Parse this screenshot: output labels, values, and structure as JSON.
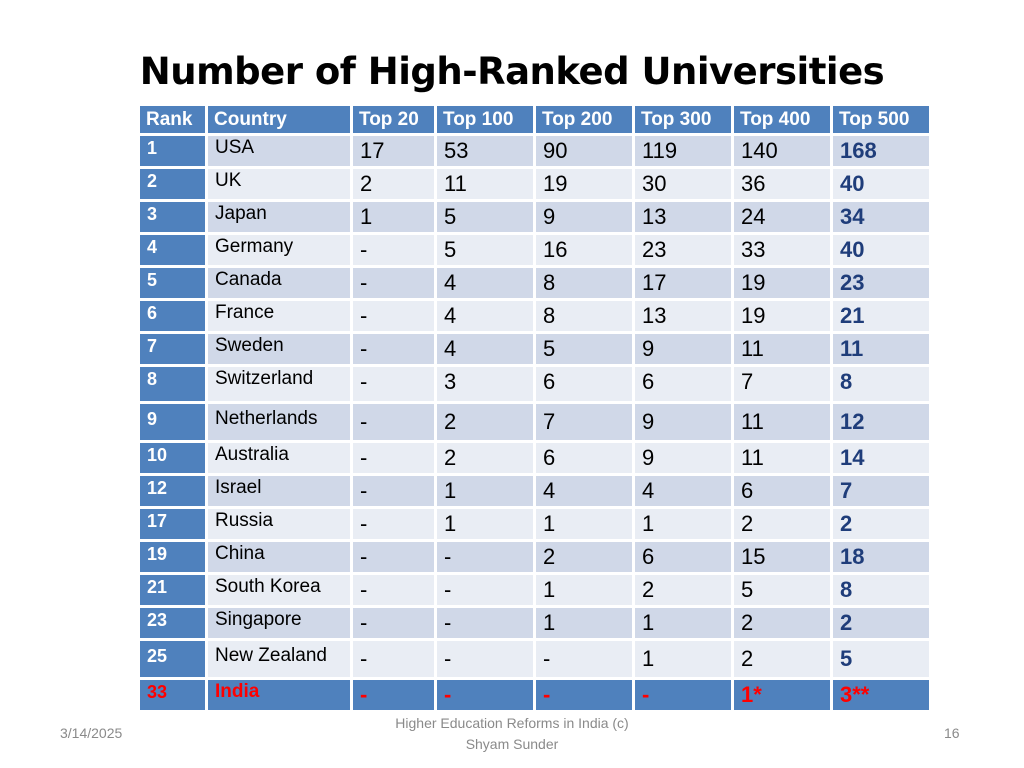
{
  "slide": {
    "title": "Number of High-Ranked Universities",
    "footer": {
      "date": "3/14/2025",
      "center_line1": "Higher Education Reforms in India (c)",
      "center_line2": "Shyam Sunder",
      "page": "16"
    }
  },
  "table": {
    "headers": [
      "Rank",
      "Country",
      "Top 20",
      "Top 100",
      "Top 200",
      "Top 300",
      "Top 400",
      "Top 500"
    ],
    "rows": [
      [
        "1",
        "USA",
        "17",
        "53",
        "90",
        "119",
        "140",
        "168"
      ],
      [
        "2",
        "UK",
        "2",
        "11",
        "19",
        "30",
        "36",
        "40"
      ],
      [
        "3",
        "Japan",
        "1",
        "5",
        "9",
        "13",
        "24",
        "34"
      ],
      [
        "4",
        "Germany",
        "-",
        "5",
        "16",
        "23",
        "33",
        "40"
      ],
      [
        "5",
        "Canada",
        "-",
        "4",
        "8",
        "17",
        "19",
        "23"
      ],
      [
        "6",
        "France",
        "-",
        "4",
        "8",
        "13",
        "19",
        "21"
      ],
      [
        "7",
        "Sweden",
        "-",
        "4",
        "5",
        "9",
        "11",
        "11"
      ],
      [
        "8",
        "Switzerland",
        "-",
        "3",
        "6",
        "6",
        "7",
        "8"
      ],
      [
        "9",
        "Netherlands",
        "-",
        "2",
        "7",
        "9",
        "11",
        "12"
      ],
      [
        "10",
        "Australia",
        "-",
        "2",
        "6",
        "9",
        "11",
        "14"
      ],
      [
        "12",
        "Israel",
        "-",
        "1",
        "4",
        "4",
        "6",
        "7"
      ],
      [
        "17",
        "Russia",
        "-",
        "1",
        "1",
        "1",
        "2",
        "2"
      ],
      [
        "19",
        "China",
        "-",
        "-",
        "2",
        "6",
        "15",
        "18"
      ],
      [
        "21",
        "South Korea",
        "-",
        "-",
        "1",
        "2",
        "5",
        "8"
      ],
      [
        "23",
        "Singapore",
        "-",
        "-",
        "1",
        "1",
        "2",
        "2"
      ],
      [
        "25",
        "New Zealand",
        "-",
        "-",
        "-",
        "1",
        "2",
        "5"
      ],
      [
        "33",
        "India",
        "-",
        "-",
        "-",
        "-",
        "1*",
        "3**"
      ]
    ],
    "highlight_row_color": "#ff0000",
    "header_color": "#4f81bd"
  }
}
